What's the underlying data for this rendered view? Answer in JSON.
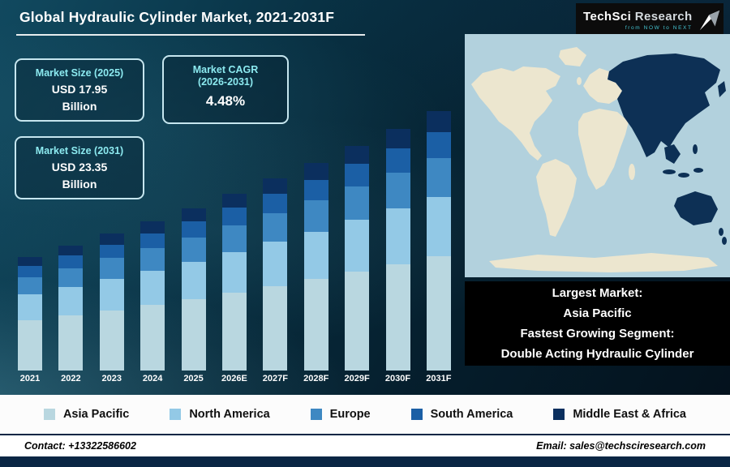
{
  "header": {
    "title": "Global Hydraulic Cylinder Market, 2021-2031F",
    "logo": {
      "brand_part1": "TechSci",
      "brand_part2": "Research",
      "tagline": "from NOW to NEXT"
    }
  },
  "stats": {
    "size_2025": {
      "label": "Market Size (2025)",
      "value": "USD 17.95",
      "unit": "Billion"
    },
    "cagr": {
      "label_line1": "Market CAGR",
      "label_line2": "(2026-2031)",
      "value": "4.48%"
    },
    "size_2031": {
      "label": "Market Size (2031)",
      "value": "USD 23.35",
      "unit": "Billion"
    }
  },
  "highlight_box": {
    "line1": "Largest Market:",
    "line2": "Asia Pacific",
    "line3": "Fastest Growing Segment:",
    "line4": "Double Acting Hydraulic Cylinder"
  },
  "footer": {
    "contact": "Contact: +13322586602",
    "email": "Email: sales@techsciresearch.com"
  },
  "colors": {
    "asia_pacific": "#b9d7e0",
    "north_america": "#93c9e6",
    "europe": "#3e88c2",
    "south_america": "#1b5fa5",
    "middle_east_africa": "#0b2f5e",
    "map_ocean": "#b2d1dd",
    "map_land": "#ece6cf",
    "map_highlight": "#0d3055",
    "accent_cyan": "#8ceaf0"
  },
  "chart_data": {
    "type": "bar",
    "stacked": true,
    "title": "Global Hydraulic Cylinder Market, 2021-2031F",
    "unit": "USD Billion",
    "categories": [
      "2021",
      "2022",
      "2023",
      "2024",
      "2025",
      "2026E",
      "2027F",
      "2028F",
      "2029F",
      "2030F",
      "2031F"
    ],
    "series": [
      {
        "name": "Asia Pacific",
        "color_key": "asia_pacific",
        "values": [
          6.71,
          7.0,
          7.28,
          7.59,
          7.9,
          8.25,
          8.62,
          9.01,
          9.42,
          9.84,
          10.27
        ]
      },
      {
        "name": "North America",
        "color_key": "north_america",
        "values": [
          3.51,
          3.66,
          3.81,
          3.97,
          4.13,
          4.31,
          4.51,
          4.71,
          4.92,
          5.14,
          5.37
        ]
      },
      {
        "name": "Europe",
        "color_key": "europe",
        "values": [
          2.29,
          2.39,
          2.48,
          2.59,
          2.69,
          2.81,
          2.94,
          3.07,
          3.21,
          3.35,
          3.5
        ]
      },
      {
        "name": "South America",
        "color_key": "south_america",
        "values": [
          1.53,
          1.59,
          1.66,
          1.73,
          1.8,
          1.88,
          1.96,
          2.05,
          2.14,
          2.24,
          2.34
        ]
      },
      {
        "name": "Middle East & Africa",
        "color_key": "middle_east_africa",
        "values": [
          1.22,
          1.27,
          1.32,
          1.38,
          1.44,
          1.5,
          1.57,
          1.64,
          1.71,
          1.79,
          1.87
        ]
      }
    ],
    "totals": [
      15.26,
      15.91,
      16.55,
      17.26,
      17.96,
      18.75,
      19.6,
      20.48,
      21.4,
      22.36,
      23.35
    ],
    "ylim": [
      9,
      24
    ],
    "y_axis_visible": false,
    "grid": false,
    "legend_position": "bottom"
  }
}
